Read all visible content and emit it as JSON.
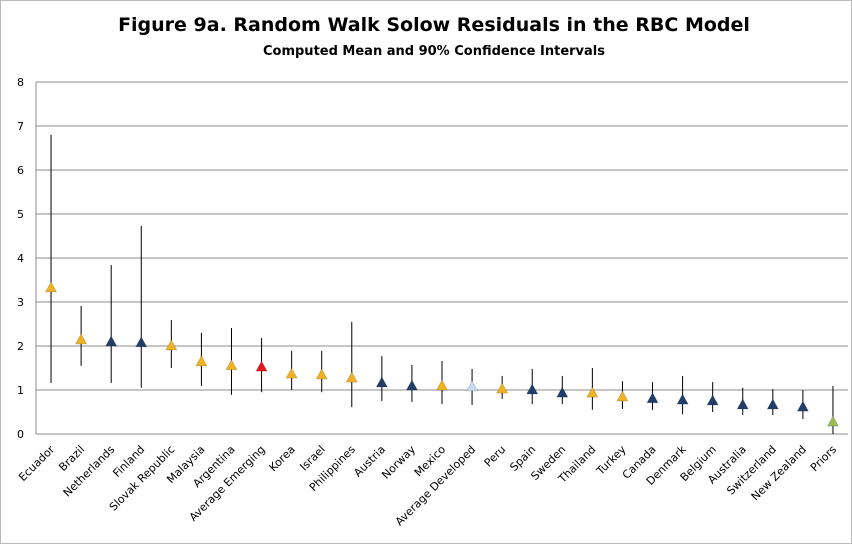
{
  "chart_data": {
    "type": "interval",
    "title": "Figure 9a. Random Walk Solow Residuals in the RBC Model",
    "subtitle": "Computed Mean and 90% Confidence Intervals",
    "categories": [
      "Ecuador",
      "Brazil",
      "Netherlands",
      "Finland",
      "Slovak Republic",
      "Malaysia",
      "Argentina",
      "Average Emerging",
      "Korea",
      "Israel",
      "Philippines",
      "Austria",
      "Norway",
      "Mexico",
      "Average Developed",
      "Peru",
      "Spain",
      "Sweden",
      "Thailand",
      "Turkey",
      "Canada",
      "Denmark",
      "Belgium",
      "Australia",
      "Switzerland",
      "New Zealand",
      "Priors"
    ],
    "values": [
      3.32,
      2.14,
      2.09,
      2.07,
      2.0,
      1.64,
      1.55,
      1.52,
      1.36,
      1.34,
      1.27,
      1.16,
      1.09,
      1.09,
      1.07,
      1.02,
      1.0,
      0.93,
      0.93,
      0.84,
      0.8,
      0.77,
      0.75,
      0.66,
      0.66,
      0.61,
      0.27
    ],
    "low": [
      1.16,
      1.55,
      1.16,
      1.05,
      1.5,
      1.09,
      0.89,
      0.95,
      1.0,
      0.95,
      0.61,
      0.75,
      0.73,
      0.68,
      0.66,
      0.8,
      0.68,
      0.68,
      0.55,
      0.57,
      0.55,
      0.45,
      0.5,
      0.43,
      0.43,
      0.34,
      0.0
    ],
    "high": [
      6.8,
      2.91,
      3.84,
      4.73,
      2.59,
      2.3,
      2.41,
      2.18,
      1.89,
      1.89,
      2.55,
      1.77,
      1.57,
      1.66,
      1.48,
      1.32,
      1.48,
      1.32,
      1.5,
      1.2,
      1.18,
      1.32,
      1.18,
      1.05,
      1.02,
      1.0,
      1.09
    ],
    "colors": [
      "#f0b323",
      "#f0b323",
      "#1f3f6a",
      "#1f3f6a",
      "#f0b323",
      "#f0b323",
      "#f0b323",
      "#e8141c",
      "#f0b323",
      "#f0b323",
      "#f0b323",
      "#1f3f6a",
      "#1f3f6a",
      "#f0b323",
      "#c6d9f1",
      "#f0b323",
      "#1f3f6a",
      "#1f3f6a",
      "#f0b323",
      "#f0b323",
      "#1f3f6a",
      "#1f3f6a",
      "#1f3f6a",
      "#1f3f6a",
      "#1f3f6a",
      "#1f3f6a",
      "#9bbb59"
    ],
    "ylim": [
      0,
      8
    ],
    "yticks": [
      0,
      1,
      2,
      3,
      4,
      5,
      6,
      7,
      8
    ],
    "grid": true
  }
}
